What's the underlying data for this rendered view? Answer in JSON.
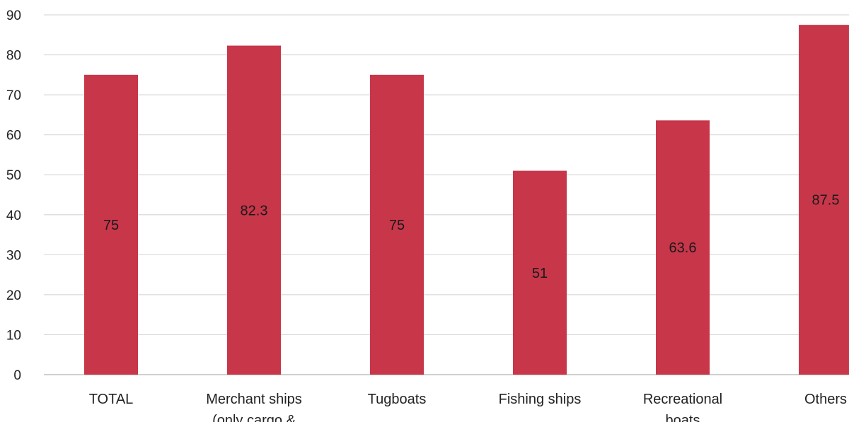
{
  "chart_data": {
    "type": "bar",
    "title": "",
    "xlabel": "",
    "ylabel": "",
    "categories": [
      "TOTAL",
      "Merchant ships (only cargo &",
      "Tugboats",
      "Fishing ships",
      "Recreational boats",
      "Others"
    ],
    "category_lines": [
      [
        "TOTAL"
      ],
      [
        "Merchant ships",
        "(only cargo &"
      ],
      [
        "Tugboats"
      ],
      [
        "Fishing ships"
      ],
      [
        "Recreational",
        "boats"
      ],
      [
        "Others"
      ]
    ],
    "values": [
      75,
      82.3,
      75,
      51,
      63.6,
      87.5
    ],
    "data_labels": [
      "75",
      "82.3",
      "75",
      "51",
      "63.6",
      "87.5"
    ],
    "ylim": [
      0,
      90
    ],
    "yticks": [
      0,
      10,
      20,
      30,
      40,
      50,
      60,
      70,
      80,
      90
    ],
    "grid": true,
    "legend": "none",
    "bar_color": "#c8364a"
  }
}
